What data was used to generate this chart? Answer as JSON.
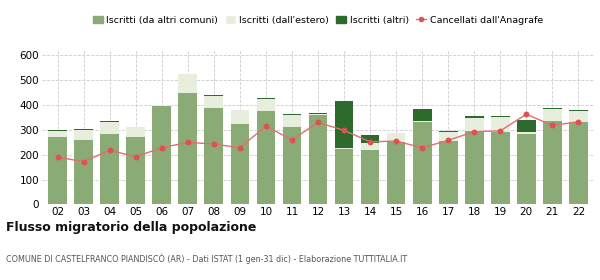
{
  "years": [
    "02",
    "03",
    "04",
    "05",
    "06",
    "07",
    "08",
    "09",
    "10",
    "11",
    "12",
    "13",
    "14",
    "15",
    "16",
    "17",
    "18",
    "19",
    "20",
    "21",
    "22"
  ],
  "iscritti_altri_comuni": [
    270,
    260,
    285,
    272,
    395,
    450,
    390,
    325,
    375,
    310,
    360,
    222,
    218,
    252,
    330,
    255,
    295,
    290,
    285,
    335,
    330
  ],
  "iscritti_estero": [
    27,
    40,
    45,
    38,
    5,
    75,
    48,
    55,
    50,
    50,
    5,
    5,
    28,
    35,
    5,
    38,
    52,
    60,
    5,
    50,
    48
  ],
  "iscritti_altri": [
    2,
    2,
    5,
    2,
    0,
    0,
    2,
    2,
    2,
    2,
    2,
    190,
    35,
    2,
    50,
    2,
    8,
    5,
    50,
    2,
    3
  ],
  "cancellati": [
    190,
    172,
    218,
    192,
    228,
    250,
    243,
    228,
    315,
    260,
    330,
    298,
    252,
    255,
    228,
    258,
    293,
    296,
    363,
    318,
    333
  ],
  "color_altri_comuni": "#8aaa76",
  "color_estero": "#e8eedd",
  "color_altri": "#2d6a2d",
  "color_cancellati": "#e05050",
  "color_line": "#e07070",
  "ylim": [
    0,
    620
  ],
  "yticks": [
    0,
    100,
    200,
    300,
    400,
    500,
    600
  ],
  "title": "Flusso migratorio della popolazione",
  "subtitle": "COMUNE DI CASTELFRANCO PIANDISCÒ (AR) - Dati ISTAT (1 gen-31 dic) - Elaborazione TUTTITALIA.IT",
  "legend_labels": [
    "Iscritti (da altri comuni)",
    "Iscritti (dall'estero)",
    "Iscritti (altri)",
    "Cancellati dall'Anagrafe"
  ],
  "background_color": "#ffffff",
  "grid_color": "#cccccc"
}
